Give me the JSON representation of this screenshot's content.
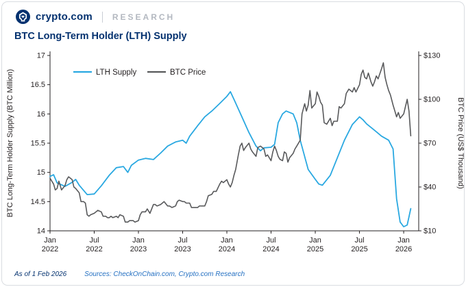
{
  "brand": {
    "logo_text": "crypto.com",
    "research_label": "RESEARCH"
  },
  "title": "BTC Long-Term Holder (LTH) Supply",
  "footer": {
    "as_of": "As of 1 Feb 2026",
    "sources": "Sources: CheckOnChain.com, Crypto.com Research"
  },
  "colors": {
    "navy": "#03316F",
    "lth_blue": "#29A8E1",
    "price_gray": "#58595B",
    "axis": "#231f20"
  },
  "chart_data": {
    "type": "line",
    "title": "BTC Long-Term Holder (LTH) Supply",
    "x_range": [
      2022.0,
      2026.17
    ],
    "x_ticks": [
      {
        "pos": 2022.0,
        "month": "Jan",
        "year": "2022"
      },
      {
        "pos": 2022.5,
        "month": "Jul",
        "year": "2022"
      },
      {
        "pos": 2023.0,
        "month": "Jan",
        "year": "2023"
      },
      {
        "pos": 2023.5,
        "month": "Jul",
        "year": "2023"
      },
      {
        "pos": 2024.0,
        "month": "Jan",
        "year": "2024"
      },
      {
        "pos": 2024.5,
        "month": "Jul",
        "year": "2024"
      },
      {
        "pos": 2025.0,
        "month": "Jan",
        "year": "2025"
      },
      {
        "pos": 2025.5,
        "month": "Jul",
        "year": "2025"
      },
      {
        "pos": 2026.0,
        "month": "Jan",
        "year": "2026"
      }
    ],
    "left_axis": {
      "label": "BTC Long-Term Holder Supply (BTC Million)",
      "min": 14,
      "max": 17,
      "ticks": [
        14,
        14.5,
        15,
        15.5,
        16,
        16.5,
        17
      ],
      "tick_prefix": ""
    },
    "right_axis": {
      "label": "BTC Price (US$ Thousand)",
      "min": 10,
      "max": 130,
      "ticks": [
        10,
        40,
        70,
        100,
        130
      ],
      "tick_prefix": "$"
    },
    "legend": [
      {
        "label": "LTH Supply",
        "color": "#29A8E1"
      },
      {
        "label": "BTC Price",
        "color": "#58595B"
      }
    ],
    "series": [
      {
        "name": "LTH Supply",
        "axis": "left",
        "color": "#29A8E1",
        "width": 1.8,
        "points": [
          [
            2022.0,
            14.93
          ],
          [
            2022.04,
            14.96
          ],
          [
            2022.08,
            14.82
          ],
          [
            2022.17,
            14.76
          ],
          [
            2022.25,
            14.83
          ],
          [
            2022.29,
            14.88
          ],
          [
            2022.33,
            14.78
          ],
          [
            2022.42,
            14.62
          ],
          [
            2022.5,
            14.63
          ],
          [
            2022.58,
            14.77
          ],
          [
            2022.67,
            14.95
          ],
          [
            2022.75,
            15.08
          ],
          [
            2022.83,
            15.1
          ],
          [
            2022.88,
            15.0
          ],
          [
            2022.92,
            15.12
          ],
          [
            2023.0,
            15.21
          ],
          [
            2023.08,
            15.24
          ],
          [
            2023.17,
            15.22
          ],
          [
            2023.25,
            15.33
          ],
          [
            2023.33,
            15.45
          ],
          [
            2023.42,
            15.52
          ],
          [
            2023.5,
            15.55
          ],
          [
            2023.54,
            15.5
          ],
          [
            2023.58,
            15.62
          ],
          [
            2023.67,
            15.8
          ],
          [
            2023.75,
            15.95
          ],
          [
            2023.83,
            16.05
          ],
          [
            2023.92,
            16.18
          ],
          [
            2024.0,
            16.3
          ],
          [
            2024.04,
            16.38
          ],
          [
            2024.08,
            16.25
          ],
          [
            2024.17,
            15.95
          ],
          [
            2024.25,
            15.68
          ],
          [
            2024.33,
            15.45
          ],
          [
            2024.38,
            15.37
          ],
          [
            2024.42,
            15.42
          ],
          [
            2024.5,
            15.43
          ],
          [
            2024.54,
            15.48
          ],
          [
            2024.58,
            15.85
          ],
          [
            2024.63,
            16.0
          ],
          [
            2024.67,
            16.05
          ],
          [
            2024.75,
            16.0
          ],
          [
            2024.79,
            15.85
          ],
          [
            2024.83,
            15.55
          ],
          [
            2024.92,
            15.05
          ],
          [
            2025.0,
            14.88
          ],
          [
            2025.04,
            14.8
          ],
          [
            2025.08,
            14.78
          ],
          [
            2025.17,
            14.95
          ],
          [
            2025.25,
            15.25
          ],
          [
            2025.33,
            15.55
          ],
          [
            2025.42,
            15.82
          ],
          [
            2025.5,
            15.95
          ],
          [
            2025.54,
            15.9
          ],
          [
            2025.58,
            15.83
          ],
          [
            2025.67,
            15.72
          ],
          [
            2025.75,
            15.62
          ],
          [
            2025.83,
            15.55
          ],
          [
            2025.88,
            15.4
          ],
          [
            2025.92,
            14.55
          ],
          [
            2025.96,
            14.15
          ],
          [
            2026.0,
            14.07
          ],
          [
            2026.04,
            14.1
          ],
          [
            2026.08,
            14.38
          ]
        ]
      },
      {
        "name": "BTC Price",
        "axis": "right",
        "color": "#58595B",
        "width": 1.6,
        "points": [
          [
            2022.0,
            46
          ],
          [
            2022.04,
            42
          ],
          [
            2022.06,
            38
          ],
          [
            2022.08,
            39
          ],
          [
            2022.1,
            44
          ],
          [
            2022.13,
            38
          ],
          [
            2022.17,
            41
          ],
          [
            2022.19,
            45
          ],
          [
            2022.21,
            47
          ],
          [
            2022.25,
            45
          ],
          [
            2022.27,
            40
          ],
          [
            2022.29,
            39
          ],
          [
            2022.33,
            36
          ],
          [
            2022.35,
            30
          ],
          [
            2022.38,
            30
          ],
          [
            2022.4,
            29
          ],
          [
            2022.42,
            21
          ],
          [
            2022.44,
            20
          ],
          [
            2022.46,
            21
          ],
          [
            2022.5,
            22
          ],
          [
            2022.52,
            23
          ],
          [
            2022.54,
            24
          ],
          [
            2022.58,
            23
          ],
          [
            2022.6,
            20
          ],
          [
            2022.63,
            20
          ],
          [
            2022.65,
            19
          ],
          [
            2022.67,
            19
          ],
          [
            2022.69,
            20
          ],
          [
            2022.71,
            19
          ],
          [
            2022.75,
            20
          ],
          [
            2022.77,
            19
          ],
          [
            2022.79,
            21
          ],
          [
            2022.83,
            20
          ],
          [
            2022.85,
            16
          ],
          [
            2022.88,
            16
          ],
          [
            2022.9,
            17
          ],
          [
            2022.92,
            17
          ],
          [
            2022.94,
            17
          ],
          [
            2022.96,
            16
          ],
          [
            2023.0,
            17
          ],
          [
            2023.02,
            21
          ],
          [
            2023.04,
            23
          ],
          [
            2023.08,
            23
          ],
          [
            2023.1,
            25
          ],
          [
            2023.13,
            22
          ],
          [
            2023.17,
            28
          ],
          [
            2023.19,
            28
          ],
          [
            2023.21,
            27
          ],
          [
            2023.25,
            28
          ],
          [
            2023.27,
            29
          ],
          [
            2023.29,
            30
          ],
          [
            2023.33,
            27
          ],
          [
            2023.35,
            27
          ],
          [
            2023.38,
            26
          ],
          [
            2023.42,
            27
          ],
          [
            2023.44,
            30
          ],
          [
            2023.46,
            31
          ],
          [
            2023.5,
            30
          ],
          [
            2023.52,
            30
          ],
          [
            2023.54,
            29
          ],
          [
            2023.58,
            29
          ],
          [
            2023.6,
            26
          ],
          [
            2023.63,
            26
          ],
          [
            2023.67,
            26
          ],
          [
            2023.69,
            27
          ],
          [
            2023.71,
            27
          ],
          [
            2023.75,
            27
          ],
          [
            2023.77,
            30
          ],
          [
            2023.79,
            34
          ],
          [
            2023.83,
            35
          ],
          [
            2023.85,
            37
          ],
          [
            2023.88,
            37
          ],
          [
            2023.92,
            42
          ],
          [
            2023.94,
            44
          ],
          [
            2023.96,
            43
          ],
          [
            2024.0,
            45
          ],
          [
            2024.02,
            42
          ],
          [
            2024.04,
            40
          ],
          [
            2024.06,
            43
          ],
          [
            2024.08,
            48
          ],
          [
            2024.1,
            52
          ],
          [
            2024.13,
            62
          ],
          [
            2024.15,
            68
          ],
          [
            2024.17,
            70
          ],
          [
            2024.19,
            65
          ],
          [
            2024.21,
            67
          ],
          [
            2024.25,
            70
          ],
          [
            2024.27,
            66
          ],
          [
            2024.29,
            64
          ],
          [
            2024.33,
            61
          ],
          [
            2024.35,
            67
          ],
          [
            2024.38,
            68
          ],
          [
            2024.42,
            66
          ],
          [
            2024.44,
            61
          ],
          [
            2024.46,
            62
          ],
          [
            2024.5,
            58
          ],
          [
            2024.52,
            64
          ],
          [
            2024.54,
            68
          ],
          [
            2024.56,
            65
          ],
          [
            2024.58,
            61
          ],
          [
            2024.6,
            59
          ],
          [
            2024.63,
            58
          ],
          [
            2024.65,
            64
          ],
          [
            2024.67,
            63
          ],
          [
            2024.69,
            57
          ],
          [
            2024.71,
            60
          ],
          [
            2024.75,
            63
          ],
          [
            2024.77,
            66
          ],
          [
            2024.79,
            68
          ],
          [
            2024.83,
            72
          ],
          [
            2024.85,
            90
          ],
          [
            2024.88,
            97
          ],
          [
            2024.9,
            92
          ],
          [
            2024.92,
            96
          ],
          [
            2024.94,
            106
          ],
          [
            2024.96,
            94
          ],
          [
            2025.0,
            97
          ],
          [
            2025.02,
            105
          ],
          [
            2025.04,
            102
          ],
          [
            2025.06,
            98
          ],
          [
            2025.08,
            96
          ],
          [
            2025.1,
            84
          ],
          [
            2025.13,
            83
          ],
          [
            2025.17,
            87
          ],
          [
            2025.19,
            82
          ],
          [
            2025.21,
            85
          ],
          [
            2025.25,
            85
          ],
          [
            2025.27,
            95
          ],
          [
            2025.29,
            94
          ],
          [
            2025.33,
            97
          ],
          [
            2025.35,
            104
          ],
          [
            2025.38,
            107
          ],
          [
            2025.42,
            105
          ],
          [
            2025.44,
            108
          ],
          [
            2025.46,
            105
          ],
          [
            2025.5,
            110
          ],
          [
            2025.52,
            117
          ],
          [
            2025.54,
            120
          ],
          [
            2025.56,
            115
          ],
          [
            2025.58,
            114
          ],
          [
            2025.6,
            118
          ],
          [
            2025.63,
            112
          ],
          [
            2025.65,
            109
          ],
          [
            2025.67,
            112
          ],
          [
            2025.69,
            116
          ],
          [
            2025.71,
            114
          ],
          [
            2025.75,
            121
          ],
          [
            2025.77,
            125
          ],
          [
            2025.79,
            115
          ],
          [
            2025.81,
            110
          ],
          [
            2025.83,
            106
          ],
          [
            2025.85,
            103
          ],
          [
            2025.88,
            96
          ],
          [
            2025.9,
            92
          ],
          [
            2025.92,
            88
          ],
          [
            2025.94,
            91
          ],
          [
            2025.96,
            87
          ],
          [
            2026.0,
            90
          ],
          [
            2026.02,
            95
          ],
          [
            2026.04,
            100
          ],
          [
            2026.06,
            92
          ],
          [
            2026.08,
            75
          ]
        ]
      }
    ]
  }
}
